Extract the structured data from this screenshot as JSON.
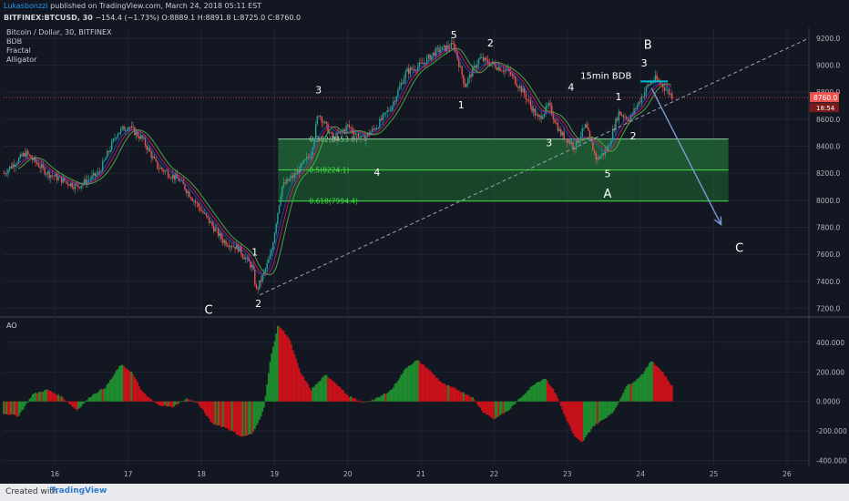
{
  "header": {
    "author": "Lukasbonzzi",
    "published": "published on TradingView.com, March 24, 2018 05:11 EST",
    "symbol": "BITFINEX:BTCUSD, 30",
    "change": "−154.4 (−1.73%)",
    "o_label": "O:",
    "o_value": "8889.1",
    "h_label": "H:",
    "h_value": "8891.8",
    "l_label": "L:",
    "l_value": "8725.0",
    "c_label": "C:",
    "c_value": "8760.0"
  },
  "title": "Bitcoin / Dollar, 30, BITFINEX",
  "indicators": [
    "BDB",
    "Fractal",
    "Alligator"
  ],
  "ao_label": "AO",
  "footer": {
    "created_with": "Created with",
    "brand": "TradingView"
  },
  "colors": {
    "background": "#131722",
    "up": "#26a69a",
    "down": "#ef5350",
    "ao_up": "#1e8c2e",
    "ao_down": "#c8111a",
    "zone": "#1e6b32",
    "arrow": "#7b9ad8"
  },
  "chart_data": [
    {
      "type": "candlestick",
      "ylim": [
        7150,
        9280
      ],
      "y_ticks": [
        "9200.0",
        "9000.0",
        "8800.0",
        "8600.0",
        "8400.0",
        "8200.0",
        "8000.0",
        "7800.0",
        "7600.0",
        "7400.0",
        "7200.0"
      ],
      "y_tick_values": [
        9200,
        9000,
        8800,
        8600,
        8400,
        8200,
        8000,
        7800,
        7600,
        7400,
        7200
      ],
      "x_ticks": [
        "16",
        "17",
        "18",
        "19",
        "20",
        "21",
        "22",
        "23",
        "24",
        "25",
        "26"
      ],
      "x_tick_values": [
        16,
        17,
        18,
        19,
        20,
        21,
        22,
        23,
        24,
        25,
        26
      ],
      "xlim": [
        15.3,
        26.3
      ],
      "last_price": "8760.0",
      "countdown": "18:54",
      "price_path": [
        [
          15.3,
          8200
        ],
        [
          15.6,
          8350
        ],
        [
          15.9,
          8200
        ],
        [
          16.3,
          8100
        ],
        [
          16.6,
          8200
        ],
        [
          16.85,
          8500
        ],
        [
          17.0,
          8550
        ],
        [
          17.2,
          8450
        ],
        [
          17.4,
          8250
        ],
        [
          17.7,
          8150
        ],
        [
          17.9,
          8000
        ],
        [
          18.1,
          7850
        ],
        [
          18.3,
          7700
        ],
        [
          18.5,
          7650
        ],
        [
          18.7,
          7500
        ],
        [
          18.75,
          7330
        ],
        [
          18.85,
          7450
        ],
        [
          18.95,
          7600
        ],
        [
          19.1,
          8100
        ],
        [
          19.3,
          8200
        ],
        [
          19.5,
          8350
        ],
        [
          19.6,
          8650
        ],
        [
          19.8,
          8450
        ],
        [
          20.0,
          8550
        ],
        [
          20.2,
          8450
        ],
        [
          20.4,
          8550
        ],
        [
          20.6,
          8700
        ],
        [
          20.8,
          8950
        ],
        [
          21.0,
          9000
        ],
        [
          21.2,
          9100
        ],
        [
          21.45,
          9150
        ],
        [
          21.6,
          8850
        ],
        [
          21.8,
          9050
        ],
        [
          22.0,
          9000
        ],
        [
          22.2,
          8950
        ],
        [
          22.4,
          8800
        ],
        [
          22.6,
          8600
        ],
        [
          22.75,
          8700
        ],
        [
          22.9,
          8500
        ],
        [
          23.1,
          8400
        ],
        [
          23.25,
          8550
        ],
        [
          23.4,
          8300
        ],
        [
          23.55,
          8380
        ],
        [
          23.7,
          8650
        ],
        [
          23.85,
          8600
        ],
        [
          23.95,
          8700
        ],
        [
          24.1,
          8850
        ],
        [
          24.2,
          8900
        ],
        [
          24.3,
          8850
        ],
        [
          24.45,
          8760
        ]
      ],
      "fib_levels": [
        {
          "label": "0.382(8453.8)",
          "value": 8453.8
        },
        {
          "label": "0.5(8224.1)",
          "value": 8224.1
        },
        {
          "label": "0.618(7994.4)",
          "value": 7994.4
        }
      ],
      "wave_labels": [
        {
          "text": "1",
          "x": 18.73,
          "y": 7590
        },
        {
          "text": "2",
          "x": 18.78,
          "y": 7210
        },
        {
          "text": "C",
          "x": 18.1,
          "y": 7160
        },
        {
          "text": "3",
          "x": 19.6,
          "y": 8790
        },
        {
          "text": "4",
          "x": 20.4,
          "y": 8180
        },
        {
          "text": "5",
          "x": 21.45,
          "y": 9200
        },
        {
          "text": "1",
          "x": 21.55,
          "y": 8680
        },
        {
          "text": "2",
          "x": 21.95,
          "y": 9140
        },
        {
          "text": "3",
          "x": 22.75,
          "y": 8400
        },
        {
          "text": "4",
          "x": 23.05,
          "y": 8810
        },
        {
          "text": "5",
          "x": 23.55,
          "y": 8170
        },
        {
          "text": "A",
          "x": 23.55,
          "y": 8020
        },
        {
          "text": "1",
          "x": 23.7,
          "y": 8740
        },
        {
          "text": "2",
          "x": 23.9,
          "y": 8450
        },
        {
          "text": "3",
          "x": 24.05,
          "y": 8990
        },
        {
          "text": "B",
          "x": 24.1,
          "y": 9120
        },
        {
          "text": "C",
          "x": 25.35,
          "y": 7620
        }
      ],
      "annotation": {
        "text": "15min BDB",
        "x": 23.95,
        "y": 8920
      },
      "trendline": {
        "from": [
          18.8,
          7300
        ],
        "to": [
          26.3,
          9200
        ]
      },
      "projection_arrow": {
        "from": [
          24.15,
          8830
        ],
        "to": [
          25.1,
          7820
        ]
      }
    },
    {
      "type": "histogram",
      "name": "AO",
      "ylim": [
        -440,
        560
      ],
      "y_ticks": [
        "400.000",
        "200.000",
        "0.0000",
        "-200.000",
        "-400.000"
      ],
      "y_tick_values": [
        400,
        200,
        0,
        -200,
        -400
      ],
      "ao_path": [
        [
          15.3,
          -80
        ],
        [
          15.5,
          -100
        ],
        [
          15.7,
          50
        ],
        [
          15.9,
          80
        ],
        [
          16.1,
          30
        ],
        [
          16.3,
          -60
        ],
        [
          16.5,
          40
        ],
        [
          16.7,
          100
        ],
        [
          16.9,
          250
        ],
        [
          17.05,
          200
        ],
        [
          17.2,
          60
        ],
        [
          17.4,
          -20
        ],
        [
          17.6,
          -40
        ],
        [
          17.8,
          20
        ],
        [
          17.95,
          -10
        ],
        [
          18.15,
          -150
        ],
        [
          18.35,
          -180
        ],
        [
          18.55,
          -240
        ],
        [
          18.7,
          -220
        ],
        [
          18.85,
          -60
        ],
        [
          18.95,
          300
        ],
        [
          19.05,
          520
        ],
        [
          19.2,
          430
        ],
        [
          19.35,
          200
        ],
        [
          19.5,
          80
        ],
        [
          19.7,
          180
        ],
        [
          19.85,
          120
        ],
        [
          20.0,
          40
        ],
        [
          20.2,
          -10
        ],
        [
          20.4,
          20
        ],
        [
          20.6,
          80
        ],
        [
          20.8,
          230
        ],
        [
          20.95,
          280
        ],
        [
          21.1,
          220
        ],
        [
          21.3,
          120
        ],
        [
          21.5,
          80
        ],
        [
          21.7,
          30
        ],
        [
          21.85,
          -70
        ],
        [
          22.0,
          -120
        ],
        [
          22.2,
          -60
        ],
        [
          22.35,
          20
        ],
        [
          22.55,
          120
        ],
        [
          22.7,
          160
        ],
        [
          22.85,
          50
        ],
        [
          22.95,
          -80
        ],
        [
          23.1,
          -240
        ],
        [
          23.2,
          -280
        ],
        [
          23.35,
          -170
        ],
        [
          23.5,
          -120
        ],
        [
          23.65,
          -60
        ],
        [
          23.8,
          100
        ],
        [
          23.95,
          150
        ],
        [
          24.05,
          200
        ],
        [
          24.15,
          280
        ],
        [
          24.3,
          200
        ],
        [
          24.45,
          90
        ]
      ]
    }
  ]
}
